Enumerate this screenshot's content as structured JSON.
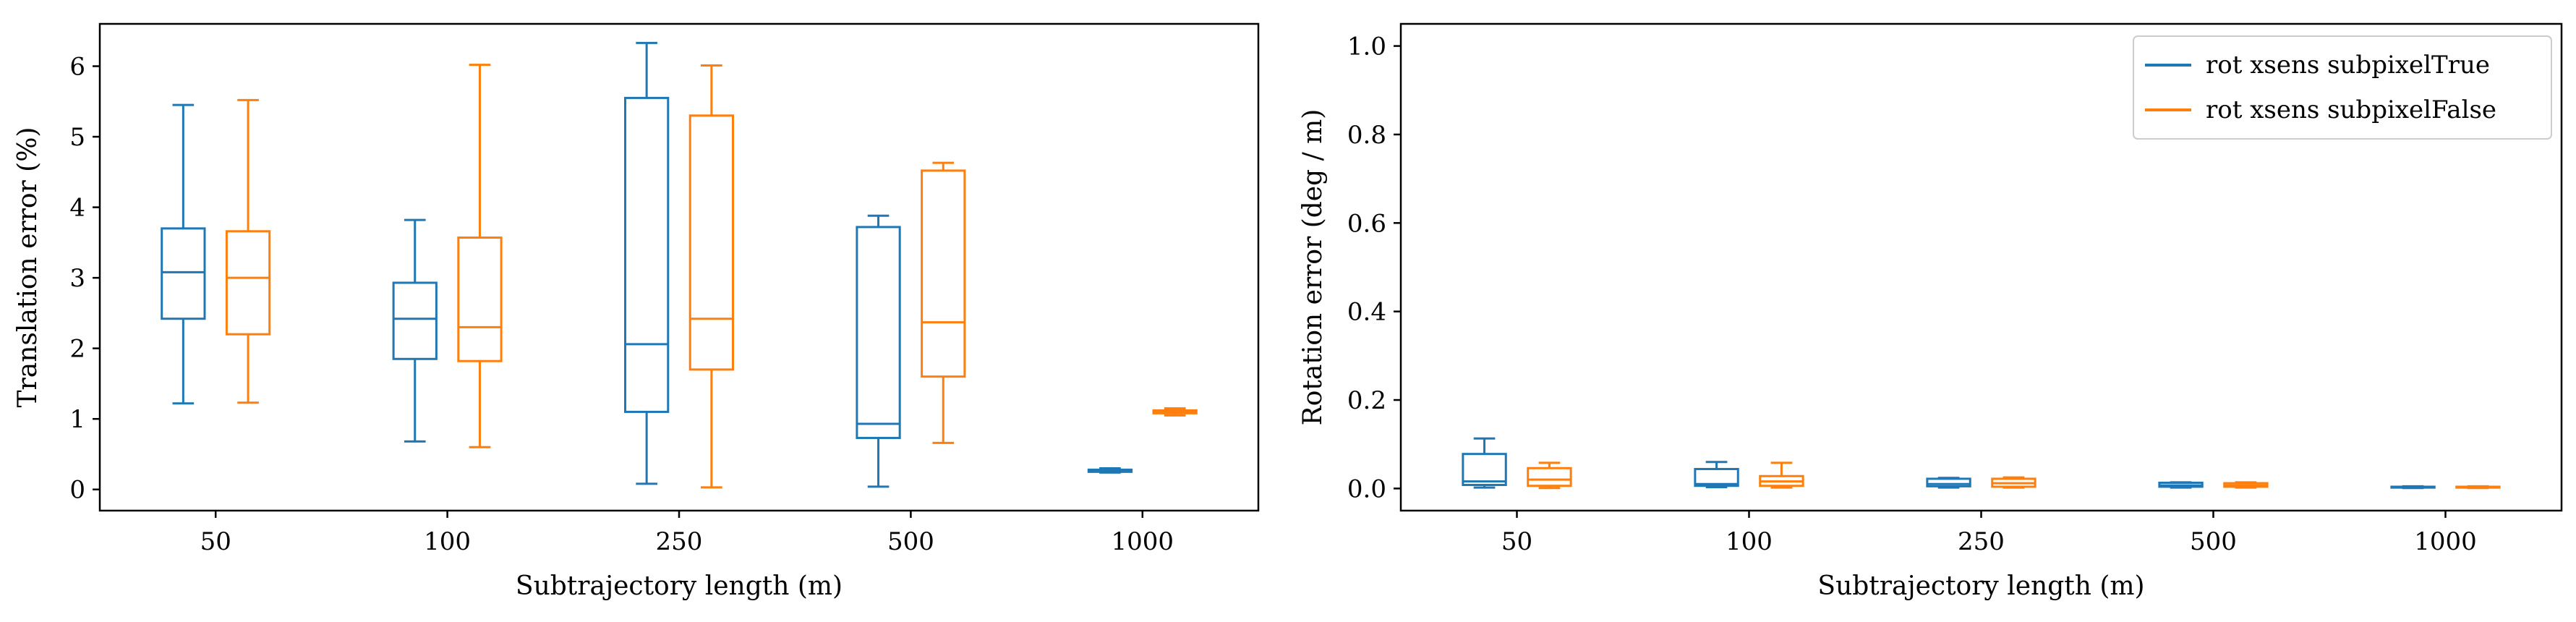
{
  "chart_data": [
    {
      "type": "box",
      "xlabel": "Subtrajectory length (m)",
      "ylabel": "Translation error (%)",
      "categories": [
        "50",
        "100",
        "250",
        "500",
        "1000"
      ],
      "yticks": [
        "0",
        "1",
        "2",
        "3",
        "4",
        "5",
        "6"
      ],
      "ylim": [
        -0.3,
        6.6
      ],
      "grid": false,
      "series": [
        {
          "name": "rot xsens subpixelTrue",
          "color": "#1f77b4",
          "boxes": [
            {
              "whislo": 1.22,
              "q1": 2.42,
              "med": 3.08,
              "q3": 3.7,
              "whishi": 5.45
            },
            {
              "whislo": 0.68,
              "q1": 1.85,
              "med": 2.42,
              "q3": 2.93,
              "whishi": 3.82
            },
            {
              "whislo": 0.08,
              "q1": 1.1,
              "med": 2.06,
              "q3": 5.55,
              "whishi": 6.33
            },
            {
              "whislo": 0.04,
              "q1": 0.73,
              "med": 0.93,
              "q3": 3.72,
              "whishi": 3.88
            },
            {
              "whislo": 0.24,
              "q1": 0.25,
              "med": 0.27,
              "q3": 0.28,
              "whishi": 0.3
            }
          ]
        },
        {
          "name": "rot xsens subpixelFalse",
          "color": "#ff7f0e",
          "boxes": [
            {
              "whislo": 1.23,
              "q1": 2.2,
              "med": 3.0,
              "q3": 3.66,
              "whishi": 5.52
            },
            {
              "whislo": 0.6,
              "q1": 1.82,
              "med": 2.3,
              "q3": 3.57,
              "whishi": 6.02
            },
            {
              "whislo": 0.03,
              "q1": 1.7,
              "med": 2.42,
              "q3": 5.3,
              "whishi": 6.01
            },
            {
              "whislo": 0.66,
              "q1": 1.6,
              "med": 2.37,
              "q3": 4.52,
              "whishi": 4.63
            },
            {
              "whislo": 1.05,
              "q1": 1.08,
              "med": 1.1,
              "q3": 1.12,
              "whishi": 1.15
            }
          ]
        }
      ]
    },
    {
      "type": "box",
      "xlabel": "Subtrajectory length (m)",
      "ylabel": "Rotation error (deg / m)",
      "categories": [
        "50",
        "100",
        "250",
        "500",
        "1000"
      ],
      "yticks": [
        "0.0",
        "0.2",
        "0.4",
        "0.6",
        "0.8",
        "1.0"
      ],
      "ylim": [
        -0.05,
        1.05
      ],
      "grid": false,
      "legend": "top-right",
      "series": [
        {
          "name": "rot xsens subpixelTrue",
          "color": "#1f77b4",
          "boxes": [
            {
              "whislo": 0.002,
              "q1": 0.008,
              "med": 0.016,
              "q3": 0.078,
              "whishi": 0.113
            },
            {
              "whislo": 0.003,
              "q1": 0.006,
              "med": 0.01,
              "q3": 0.044,
              "whishi": 0.06
            },
            {
              "whislo": 0.002,
              "q1": 0.005,
              "med": 0.01,
              "q3": 0.022,
              "whishi": 0.024
            },
            {
              "whislo": 0.002,
              "q1": 0.004,
              "med": 0.007,
              "q3": 0.013,
              "whishi": 0.014
            },
            {
              "whislo": 0.001,
              "q1": 0.002,
              "med": 0.003,
              "q3": 0.004,
              "whishi": 0.005
            }
          ]
        },
        {
          "name": "rot xsens subpixelFalse",
          "color": "#ff7f0e",
          "boxes": [
            {
              "whislo": 0.001,
              "q1": 0.006,
              "med": 0.02,
              "q3": 0.046,
              "whishi": 0.058
            },
            {
              "whislo": 0.002,
              "q1": 0.006,
              "med": 0.016,
              "q3": 0.028,
              "whishi": 0.058
            },
            {
              "whislo": 0.002,
              "q1": 0.004,
              "med": 0.012,
              "q3": 0.022,
              "whishi": 0.025
            },
            {
              "whislo": 0.002,
              "q1": 0.004,
              "med": 0.007,
              "q3": 0.012,
              "whishi": 0.014
            },
            {
              "whislo": 0.001,
              "q1": 0.002,
              "med": 0.003,
              "q3": 0.004,
              "whishi": 0.005
            }
          ]
        }
      ]
    }
  ]
}
